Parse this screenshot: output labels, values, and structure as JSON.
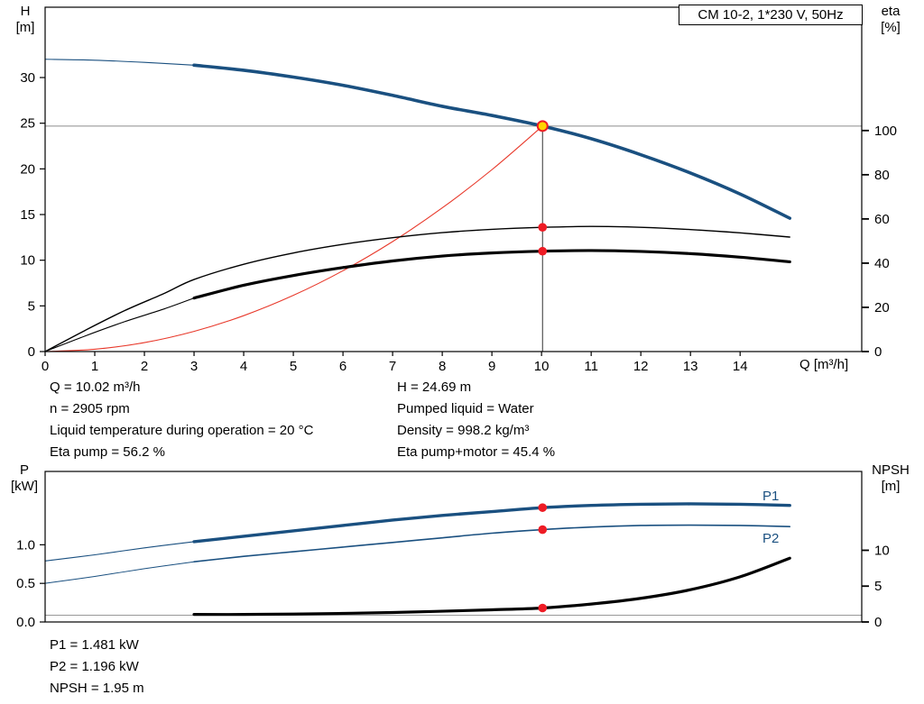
{
  "title_box": "CM 10-2, 1*230 V, 50Hz",
  "top_chart": {
    "left_axis_title_line1": "H",
    "left_axis_title_line2": "[m]",
    "right_axis_title_line1": "eta",
    "right_axis_title_line2": "[%]",
    "x_axis_title": "Q [m³/h]"
  },
  "bottom_chart": {
    "left_axis_title_line1": "P",
    "left_axis_title_line2": "[kW]",
    "right_axis_title_line1": "NPSH",
    "right_axis_title_line2": "[m]",
    "p1_label": "P1",
    "p2_label": "P2"
  },
  "info_top": {
    "left": [
      "Q = 10.02 m³/h",
      "n = 2905 rpm",
      "Liquid temperature during operation = 20 °C",
      "Eta pump = 56.2 %"
    ],
    "right": [
      "H = 24.69 m",
      "Pumped liquid = Water",
      "Density = 998.2 kg/m³",
      "Eta pump+motor = 45.4 %"
    ]
  },
  "info_bottom": [
    "P1 = 1.481 kW",
    "P2 = 1.196 kW",
    "NPSH = 1.95 m"
  ],
  "colors": {
    "curve_blue": "#1a5080",
    "curve_red": "#e8392b",
    "curve_black": "#000000",
    "gray_line": "#999999",
    "duty_h_line": "#8c8c8c",
    "duty_v_line": "#333333",
    "marker_red": "#ee1c25",
    "marker_yellow": "#ffd400",
    "frame": "#000000"
  },
  "chart_data": [
    {
      "type": "line",
      "title": "CM 10-2, 1*230 V, 50Hz",
      "xlabel": "Q [m³/h]",
      "ylabel_left": "H [m]",
      "ylabel_right": "eta [%]",
      "x_range": [
        0,
        16.45
      ],
      "y_left_range": [
        0,
        37.7
      ],
      "y_right_range": [
        0,
        155.8
      ],
      "grid": false,
      "x_ticks": [
        {
          "v": 0,
          "label": "0"
        },
        {
          "v": 1,
          "label": "1"
        },
        {
          "v": 2,
          "label": "2"
        },
        {
          "v": 3,
          "label": "3"
        },
        {
          "v": 4,
          "label": "4"
        },
        {
          "v": 5,
          "label": "5"
        },
        {
          "v": 6,
          "label": "6"
        },
        {
          "v": 7,
          "label": "7"
        },
        {
          "v": 8,
          "label": "8"
        },
        {
          "v": 9,
          "label": "9"
        },
        {
          "v": 10,
          "label": "10"
        },
        {
          "v": 11,
          "label": "11"
        },
        {
          "v": 12,
          "label": "12"
        },
        {
          "v": 13,
          "label": "13"
        },
        {
          "v": 14,
          "label": "14"
        }
      ],
      "y_left_ticks": [
        {
          "v": 0,
          "label": "0"
        },
        {
          "v": 5,
          "label": "5"
        },
        {
          "v": 10,
          "label": "10"
        },
        {
          "v": 15,
          "label": "15"
        },
        {
          "v": 20,
          "label": "20"
        },
        {
          "v": 25,
          "label": "25"
        },
        {
          "v": 30,
          "label": "30"
        }
      ],
      "y_right_ticks": [
        {
          "v": 0,
          "label": "0"
        },
        {
          "v": 20,
          "label": "20"
        },
        {
          "v": 40,
          "label": "40"
        },
        {
          "v": 60,
          "label": "60"
        },
        {
          "v": 80,
          "label": "80"
        },
        {
          "v": 100,
          "label": "100"
        }
      ],
      "lines": [
        {
          "type": "h",
          "axis": "left",
          "value": 24.69,
          "color": "#8c8c8c",
          "width": 1
        },
        {
          "type": "v",
          "axis": "left",
          "q": 10.02,
          "from": 0,
          "to": 24.69,
          "color": "#333333",
          "width": 1
        }
      ],
      "series": [
        {
          "name": "qh-curve-thin",
          "axis": "left",
          "color": "#1a5080",
          "width": 1.1,
          "points": [
            [
              0,
              32.0
            ],
            [
              1,
              31.9
            ],
            [
              2,
              31.66
            ],
            [
              3,
              31.35
            ]
          ]
        },
        {
          "name": "qh-curve",
          "axis": "left",
          "color": "#1a5080",
          "width": 3.6,
          "points": [
            [
              3,
              31.35
            ],
            [
              4,
              30.8
            ],
            [
              5,
              30.05
            ],
            [
              6,
              29.15
            ],
            [
              7,
              28.05
            ],
            [
              8,
              26.85
            ],
            [
              9,
              25.85
            ],
            [
              10.02,
              24.69
            ],
            [
              11,
              23.3
            ],
            [
              12,
              21.55
            ],
            [
              13,
              19.55
            ],
            [
              14,
              17.25
            ],
            [
              15,
              14.6
            ]
          ]
        },
        {
          "name": "system-curve",
          "axis": "left",
          "color": "#e8392b",
          "width": 1.1,
          "points": [
            [
              0,
              0
            ],
            [
              1,
              0.25
            ],
            [
              2,
              0.98
            ],
            [
              3,
              2.21
            ],
            [
              4,
              3.93
            ],
            [
              5,
              6.15
            ],
            [
              6,
              8.85
            ],
            [
              7,
              12.04
            ],
            [
              8,
              15.73
            ],
            [
              9,
              19.91
            ],
            [
              10.02,
              24.69
            ]
          ]
        },
        {
          "name": "eta-pump-curve",
          "axis": "right",
          "color": "#000000",
          "width": 1.4,
          "points": [
            [
              0,
              0
            ],
            [
              0.8,
              9.5
            ],
            [
              1.6,
              18.5
            ],
            [
              2.4,
              26.3
            ],
            [
              3,
              32.6
            ],
            [
              4,
              39.5
            ],
            [
              5,
              44.6
            ],
            [
              6,
              48.5
            ],
            [
              7,
              51.5
            ],
            [
              8,
              53.8
            ],
            [
              9,
              55.3
            ],
            [
              10.02,
              56.2
            ],
            [
              11,
              56.6
            ],
            [
              12,
              56.2
            ],
            [
              13,
              55.2
            ],
            [
              14,
              53.7
            ],
            [
              15,
              51.8
            ]
          ]
        },
        {
          "name": "eta-pump-motor-curve-thin",
          "axis": "right",
          "color": "#000000",
          "width": 1.1,
          "points": [
            [
              0,
              0
            ],
            [
              0.8,
              7.0
            ],
            [
              1.6,
              13.5
            ],
            [
              2.4,
              19.3
            ],
            [
              3,
              24.2
            ]
          ]
        },
        {
          "name": "eta-pump-motor-curve",
          "axis": "right",
          "color": "#000000",
          "width": 3.2,
          "points": [
            [
              3,
              24.2
            ],
            [
              4,
              30.0
            ],
            [
              5,
              34.4
            ],
            [
              6,
              38.0
            ],
            [
              7,
              41.0
            ],
            [
              8,
              43.2
            ],
            [
              9,
              44.6
            ],
            [
              10.02,
              45.4
            ],
            [
              11,
              45.7
            ],
            [
              12,
              45.3
            ],
            [
              13,
              44.3
            ],
            [
              14,
              42.7
            ],
            [
              15,
              40.6
            ]
          ]
        }
      ],
      "markers": [
        {
          "q": 10.02,
          "value": 24.69,
          "axis": "left",
          "style": "duty"
        },
        {
          "q": 10.02,
          "value": 56.2,
          "axis": "right",
          "style": "red"
        },
        {
          "q": 10.02,
          "value": 45.4,
          "axis": "right",
          "style": "red"
        }
      ],
      "duty_point": {
        "Q_m3h": 10.02,
        "H_m": 24.69,
        "eta_pump_pct": 56.2,
        "eta_pump_motor_pct": 45.4
      }
    },
    {
      "type": "line",
      "title": "",
      "xlabel": "",
      "ylabel_left": "P [kW]",
      "ylabel_right": "NPSH [m]",
      "x_range": [
        0,
        16.45
      ],
      "y_left_range": [
        0,
        1.95
      ],
      "y_right_range": [
        0,
        21
      ],
      "grid": false,
      "x_ticks": [],
      "y_left_ticks": [
        {
          "v": 0,
          "label": "0.0"
        },
        {
          "v": 0.5,
          "label": "0.5"
        },
        {
          "v": 1,
          "label": "1.0"
        }
      ],
      "y_right_ticks": [
        {
          "v": 0,
          "label": "0"
        },
        {
          "v": 5,
          "label": "5"
        },
        {
          "v": 10,
          "label": "10"
        }
      ],
      "lines": [],
      "series": [
        {
          "name": "npsh-baseline",
          "axis": "right",
          "color": "#999999",
          "width": 1,
          "points": [
            [
              0,
              0.95
            ],
            [
              16.45,
              0.95
            ]
          ]
        },
        {
          "name": "p1-curve-thin",
          "axis": "left",
          "color": "#1a5080",
          "width": 1.1,
          "points": [
            [
              0,
              0.79
            ],
            [
              1,
              0.87
            ],
            [
              2,
              0.96
            ],
            [
              3,
              1.04
            ]
          ]
        },
        {
          "name": "p1-curve",
          "axis": "left",
          "color": "#1a5080",
          "width": 3.4,
          "points": [
            [
              3,
              1.04
            ],
            [
              4,
              1.11
            ],
            [
              5,
              1.18
            ],
            [
              6,
              1.25
            ],
            [
              7,
              1.32
            ],
            [
              8,
              1.38
            ],
            [
              9,
              1.43
            ],
            [
              10.02,
              1.481
            ],
            [
              11,
              1.51
            ],
            [
              12,
              1.525
            ],
            [
              13,
              1.53
            ],
            [
              14,
              1.525
            ],
            [
              15,
              1.51
            ]
          ]
        },
        {
          "name": "p2-curve-thin",
          "axis": "left",
          "color": "#1a5080",
          "width": 1.0,
          "points": [
            [
              0,
              0.5
            ],
            [
              1,
              0.59
            ],
            [
              2,
              0.69
            ],
            [
              3,
              0.78
            ]
          ]
        },
        {
          "name": "p2-curve",
          "axis": "left",
          "color": "#1a5080",
          "width": 1.6,
          "points": [
            [
              3,
              0.78
            ],
            [
              4,
              0.85
            ],
            [
              5,
              0.91
            ],
            [
              6,
              0.97
            ],
            [
              7,
              1.03
            ],
            [
              8,
              1.09
            ],
            [
              9,
              1.15
            ],
            [
              10.02,
              1.196
            ],
            [
              11,
              1.23
            ],
            [
              12,
              1.25
            ],
            [
              13,
              1.255
            ],
            [
              14,
              1.25
            ],
            [
              15,
              1.235
            ]
          ]
        },
        {
          "name": "npsh-curve",
          "axis": "right",
          "color": "#000000",
          "width": 3.2,
          "points": [
            [
              3,
              1.05
            ],
            [
              4,
              1.05
            ],
            [
              5,
              1.1
            ],
            [
              6,
              1.2
            ],
            [
              7,
              1.32
            ],
            [
              8,
              1.5
            ],
            [
              9,
              1.7
            ],
            [
              10.02,
              1.95
            ],
            [
              11,
              2.5
            ],
            [
              12,
              3.3
            ],
            [
              13,
              4.5
            ],
            [
              14,
              6.3
            ],
            [
              15,
              8.9
            ]
          ]
        }
      ],
      "markers": [
        {
          "q": 10.02,
          "value": 1.481,
          "axis": "left",
          "style": "red"
        },
        {
          "q": 10.02,
          "value": 1.196,
          "axis": "left",
          "style": "red"
        },
        {
          "q": 10.02,
          "value": 1.95,
          "axis": "right",
          "style": "red"
        }
      ],
      "duty_point": {
        "Q_m3h": 10.02,
        "P1_kW": 1.481,
        "P2_kW": 1.196,
        "NPSH_m": 1.95
      }
    }
  ]
}
